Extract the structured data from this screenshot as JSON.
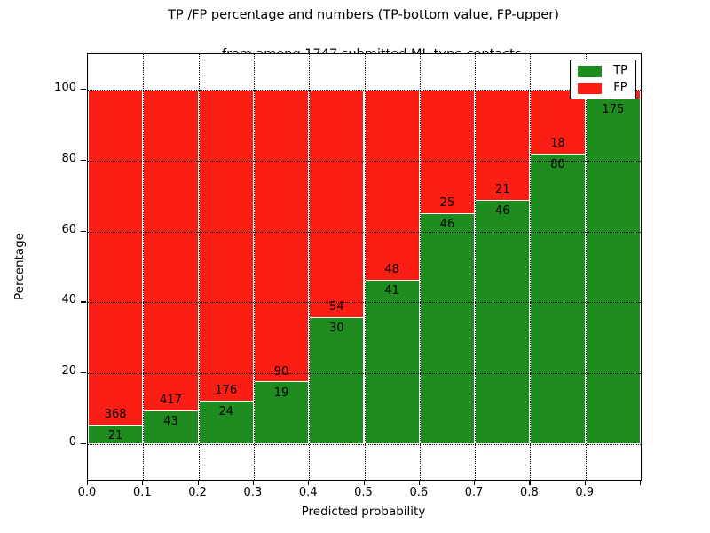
{
  "title": {
    "line1": "TP /FP percentage and numbers (TP-bottom value, FP-upper)",
    "line2": "from among 1747 submitted ML-type contacts"
  },
  "chart_data": {
    "type": "bar",
    "stacked": true,
    "title": "TP /FP percentage and numbers (TP-bottom value, FP-upper) from among 1747 submitted ML-type contacts",
    "xlabel": "Predicted probability",
    "ylabel": "Percentage",
    "total_contacts": 1747,
    "bin_width": 0.1,
    "bin_starts": [
      0.0,
      0.1,
      0.2,
      0.3,
      0.4,
      0.5,
      0.6,
      0.7,
      0.8,
      0.9
    ],
    "series": [
      {
        "name": "TP",
        "color": "#1e8c1e",
        "counts": [
          21,
          43,
          24,
          19,
          30,
          41,
          46,
          46,
          80,
          175
        ]
      },
      {
        "name": "FP",
        "color": "#fb1e15",
        "counts": [
          368,
          417,
          176,
          90,
          54,
          48,
          25,
          21,
          18,
          null
        ]
      }
    ],
    "tp_percent": [
      5.4,
      9.35,
      12.0,
      17.43,
      35.71,
      46.07,
      64.79,
      68.66,
      81.63,
      97.22
    ],
    "bar_total_percent": 100,
    "x_tick_labels": [
      "0.0",
      "0.1",
      "0.2",
      "0.3",
      "0.4",
      "0.5",
      "0.6",
      "0.7",
      "0.8",
      "0.9"
    ],
    "y_tick_labels": [
      "0",
      "20",
      "40",
      "60",
      "80",
      "100"
    ],
    "y_tick_values": [
      0,
      20,
      40,
      60,
      80,
      100
    ],
    "xlim": [
      0.0,
      1.0
    ],
    "ylim": [
      -10,
      110
    ],
    "grid": true,
    "grid_style": "dotted",
    "bar_edge_color": "#ffffff",
    "legend": {
      "position": "upper right",
      "entries": [
        {
          "label": "TP",
          "color": "#1e8c1e"
        },
        {
          "label": "FP",
          "color": "#fb1e15"
        }
      ]
    }
  }
}
